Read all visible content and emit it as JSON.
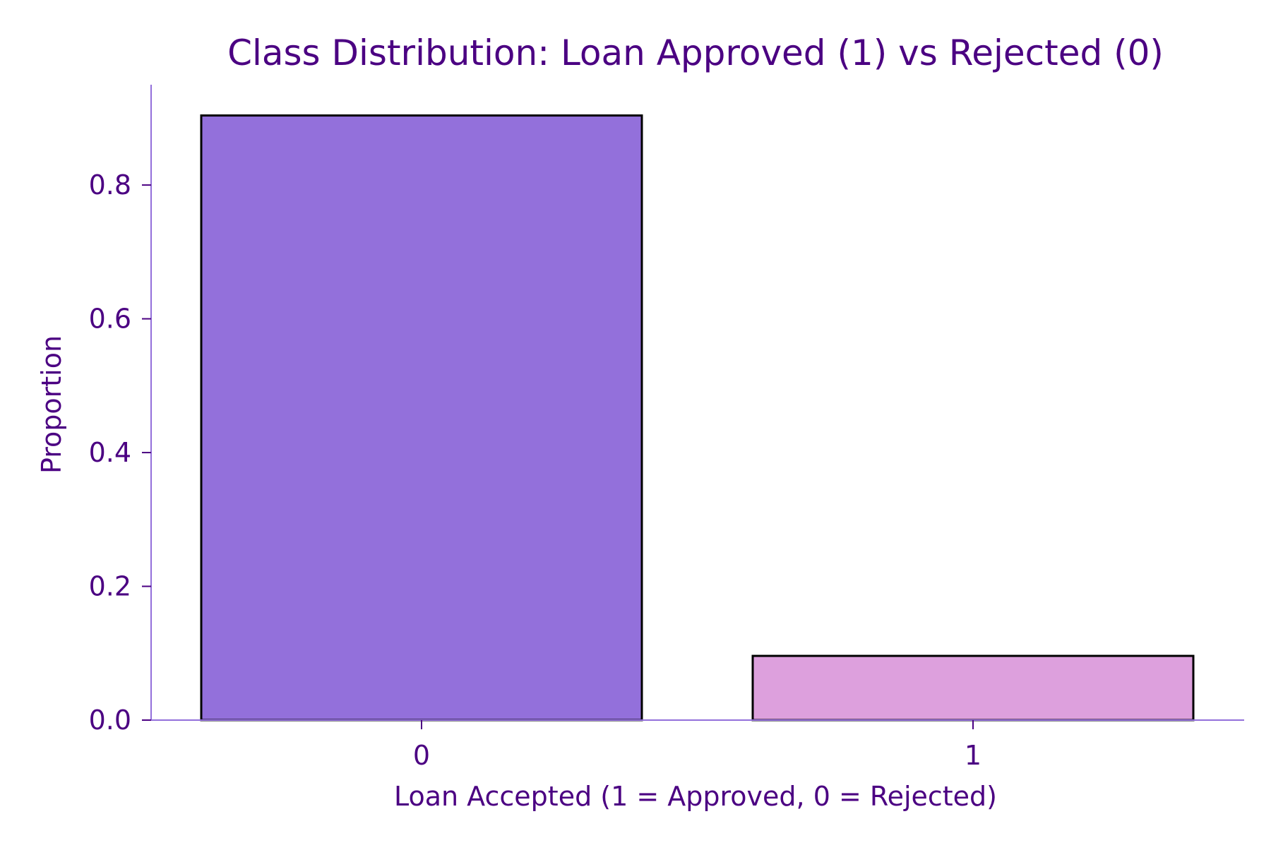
{
  "chart_data": {
    "type": "bar",
    "title": "Class Distribution: Loan Approved (1) vs Rejected (0)",
    "xlabel": "Loan Accepted (1 = Approved, 0 = Rejected)",
    "ylabel": "Proportion",
    "categories": [
      "0",
      "1"
    ],
    "values": [
      0.904,
      0.096
    ],
    "ylim": [
      0.0,
      0.95
    ],
    "yticks": [
      0.0,
      0.2,
      0.4,
      0.6,
      0.8
    ],
    "ytick_labels": [
      "0.0",
      "0.2",
      "0.4",
      "0.6",
      "0.8"
    ],
    "bar_colors": [
      "#9370DB",
      "#DDA0DD"
    ],
    "edge_color": "#000000",
    "text_color": "#4B0082",
    "spine_color": "#9370DB",
    "grid": false,
    "legend": false
  }
}
